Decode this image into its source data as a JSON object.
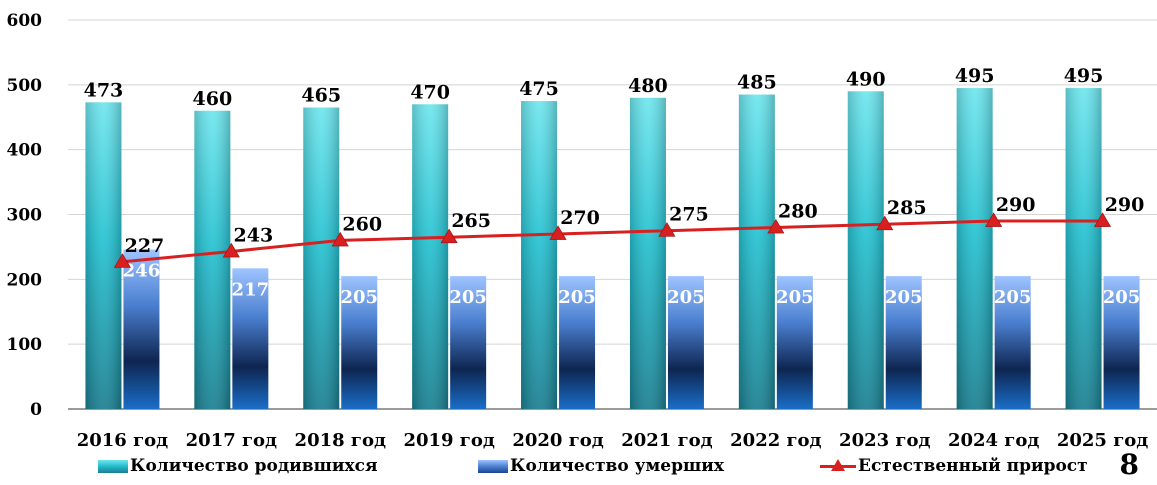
{
  "chart_data": {
    "type": "bar",
    "title": "",
    "xlabel": "",
    "ylabel": "",
    "ylim": [
      0,
      600
    ],
    "yticks": [
      0,
      100,
      200,
      300,
      400,
      500,
      600
    ],
    "grid": true,
    "legend_position": "bottom",
    "categories": [
      "2016 год",
      "2017 год",
      "2018 год",
      "2019 год",
      "2020 год",
      "2021 год",
      "2022 год",
      "2023 год",
      "2024 год",
      "2025 год"
    ],
    "series": [
      {
        "name": "Количество родившихся",
        "type": "bar",
        "color": "#22b9c8",
        "values": [
          473,
          460,
          465,
          470,
          475,
          480,
          485,
          490,
          495,
          495
        ]
      },
      {
        "name": "Количество умерших",
        "type": "bar",
        "color": "#2a5fb0",
        "values": [
          246,
          217,
          205,
          205,
          205,
          205,
          205,
          205,
          205,
          205
        ]
      },
      {
        "name": "Естественный прирост",
        "type": "line",
        "color": "#d82020",
        "values": [
          227,
          243,
          260,
          265,
          270,
          275,
          280,
          285,
          290,
          290
        ]
      }
    ]
  },
  "page_number": "8"
}
